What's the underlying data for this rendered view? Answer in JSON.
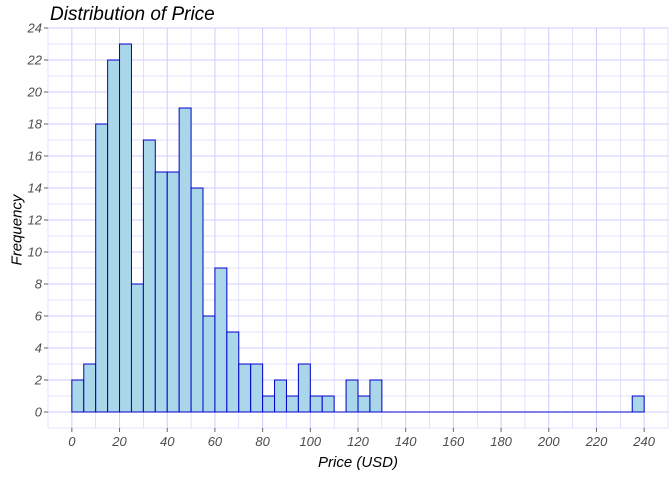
{
  "chart_data": {
    "type": "bar",
    "title": "Distribution of Price",
    "xlabel": "Price (USD)",
    "ylabel": "Frequency",
    "bin_width": 5,
    "bins_start": [
      0,
      5,
      10,
      15,
      20,
      25,
      30,
      35,
      40,
      45,
      50,
      55,
      60,
      65,
      70,
      75,
      80,
      85,
      90,
      95,
      100,
      105,
      110,
      115,
      120,
      125,
      130,
      135,
      140,
      145,
      150,
      155,
      160,
      165,
      170,
      175,
      180,
      185,
      190,
      195,
      200,
      205,
      210,
      215,
      220,
      225,
      230,
      235
    ],
    "values": [
      2,
      3,
      18,
      22,
      23,
      8,
      17,
      15,
      15,
      19,
      14,
      6,
      9,
      5,
      3,
      3,
      1,
      2,
      1,
      3,
      1,
      1,
      0,
      2,
      1,
      2,
      0,
      0,
      0,
      0,
      0,
      0,
      0,
      0,
      0,
      0,
      0,
      0,
      0,
      0,
      0,
      0,
      0,
      0,
      0,
      0,
      0,
      1
    ],
    "xlim": [
      -10,
      250
    ],
    "ylim": [
      -1,
      24
    ],
    "xticks": [
      0,
      20,
      40,
      60,
      80,
      100,
      120,
      140,
      160,
      180,
      200,
      220,
      240
    ],
    "yticks": [
      0,
      2,
      4,
      6,
      8,
      10,
      12,
      14,
      16,
      18,
      20,
      22,
      24
    ],
    "grid": true,
    "colors": {
      "fill": "#a9d6e8",
      "stroke": "#0000cc",
      "grid": "#ccccff"
    }
  }
}
